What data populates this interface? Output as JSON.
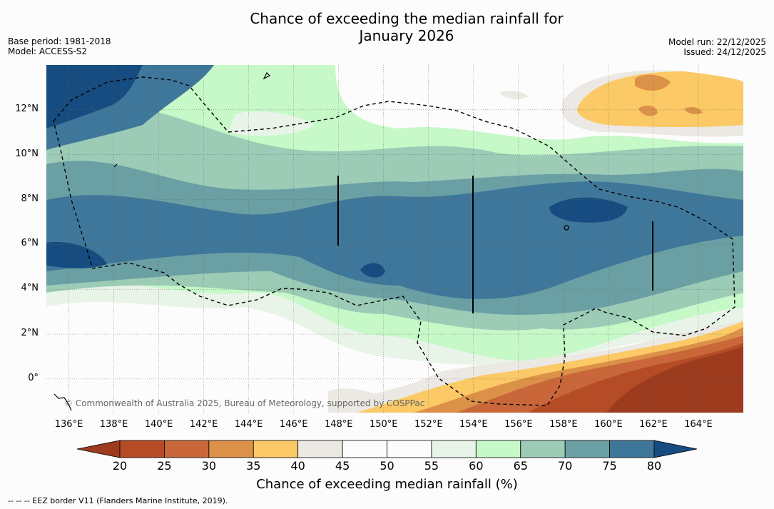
{
  "title": {
    "line1": "Chance of exceeding the median rainfall for",
    "line2": "January 2026"
  },
  "meta": {
    "base_period": "Base period: 1981-2018",
    "model": "Model: ACCESS-S2",
    "model_run": "Model run: 22/12/2025",
    "issued": "Issued: 24/12/2025"
  },
  "map": {
    "lat_labels": [
      "12°N",
      "10°N",
      "8°N",
      "6°N",
      "4°N",
      "2°N",
      "0°"
    ],
    "lat_values": [
      12,
      10,
      8,
      6,
      4,
      2,
      0
    ],
    "lon_labels": [
      "136°E",
      "138°E",
      "140°E",
      "142°E",
      "144°E",
      "146°E",
      "148°E",
      "150°E",
      "152°E",
      "154°E",
      "156°E",
      "158°E",
      "160°E",
      "162°E",
      "164°E"
    ],
    "lon_values": [
      136,
      138,
      140,
      142,
      144,
      146,
      148,
      150,
      152,
      154,
      156,
      158,
      160,
      162,
      164
    ],
    "extent": {
      "lon_min": 135,
      "lon_max": 166,
      "lat_min": -1.5,
      "lat_max": 14
    },
    "copyright": "© Commonwealth of Australia 2025, Bureau of Meteorology, supported by COSPPac"
  },
  "colorbar": {
    "ticks": [
      "20",
      "25",
      "30",
      "35",
      "40",
      "45",
      "50",
      "55",
      "60",
      "65",
      "70",
      "75",
      "80"
    ],
    "colors": [
      "#9c3b1e",
      "#b54c26",
      "#c9673a",
      "#dc9148",
      "#fbc965",
      "#ece9e4",
      "#fcfcfc",
      "#fcfcfc",
      "#e9f4e8",
      "#c6f8c8",
      "#9ccbb6",
      "#6aa0a4",
      "#3f779a",
      "#174c80"
    ],
    "label": "Chance of exceeding median rainfall (%)"
  },
  "footnote": "-- -- -- EEZ border V11 (Flanders Marine Institute, 2019)."
}
